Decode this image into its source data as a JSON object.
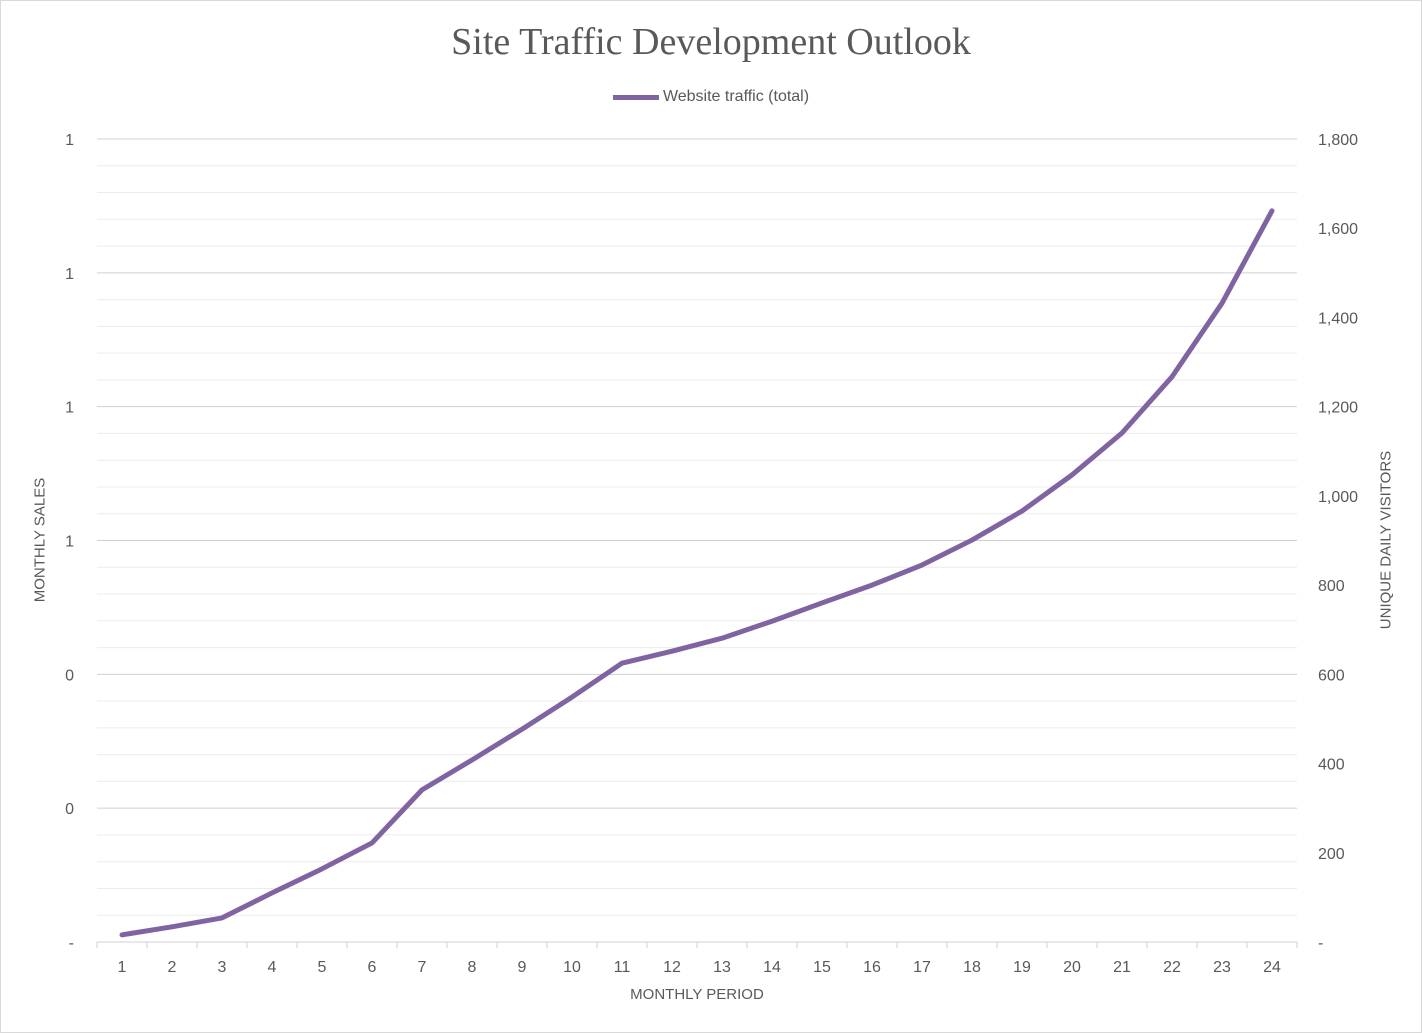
{
  "chart_data": {
    "type": "line",
    "title": "Site Traffic Development Outlook",
    "xlabel": "MONTHLY PERIOD",
    "ylabel_left": "MONTHLY SALES",
    "ylabel_right": "UNIQUE DAILY VISITORS",
    "categories": [
      1,
      2,
      3,
      4,
      5,
      6,
      7,
      8,
      9,
      10,
      11,
      12,
      13,
      14,
      15,
      16,
      17,
      18,
      19,
      20,
      21,
      22,
      23,
      24
    ],
    "series": [
      {
        "name": "Website traffic (total)",
        "axis": "right",
        "color": "#8064a2",
        "values": [
          16,
          34,
          54,
          110,
          164,
          222,
          341,
          408,
          477,
          549,
          625,
          652,
          681,
          719,
          760,
          800,
          845,
          901,
          966,
          1047,
          1141,
          1267,
          1432,
          1639
        ]
      }
    ],
    "right_axis": {
      "ylim": [
        0,
        1800
      ],
      "ticks": [
        "-",
        "200",
        "400",
        "600",
        "800",
        "1,000",
        "1,200",
        "1,400",
        "1,600",
        "1,800"
      ]
    },
    "left_axis": {
      "ticks": [
        "-",
        "0",
        "0",
        "1",
        "1",
        "1",
        "1"
      ]
    },
    "grid": true,
    "legend_placement": "top"
  }
}
